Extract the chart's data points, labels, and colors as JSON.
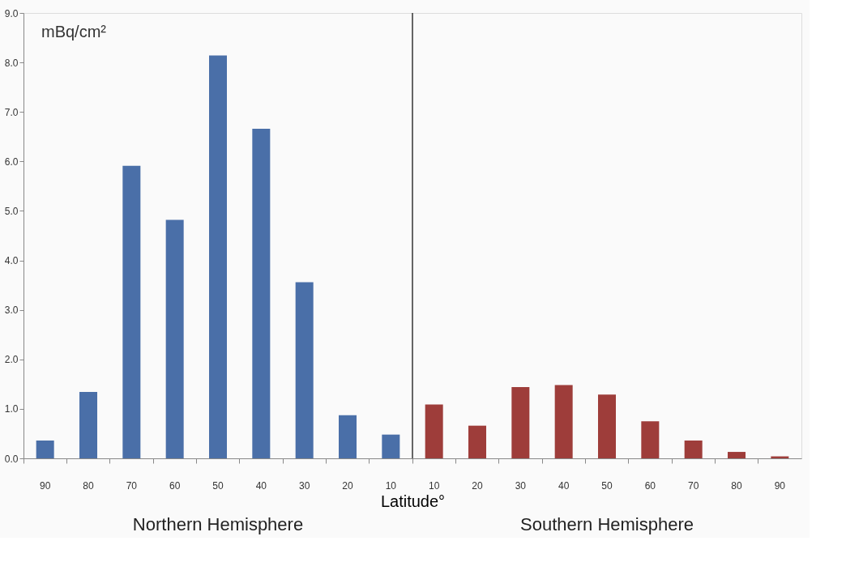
{
  "chart_data": {
    "type": "bar",
    "xlabel": "Latitude°",
    "ylabel": "mBq/cm²",
    "categories": [
      "90",
      "80",
      "70",
      "60",
      "50",
      "40",
      "30",
      "20",
      "10",
      "10",
      "20",
      "30",
      "40",
      "50",
      "60",
      "70",
      "80",
      "90"
    ],
    "values": [
      0.36,
      1.34,
      5.91,
      4.82,
      8.14,
      6.66,
      3.56,
      0.87,
      0.48,
      1.09,
      0.66,
      1.44,
      1.48,
      1.29,
      0.75,
      0.36,
      0.13,
      0.04
    ],
    "colors": [
      "#4a6fa8",
      "#4a6fa8",
      "#4a6fa8",
      "#4a6fa8",
      "#4a6fa8",
      "#4a6fa8",
      "#4a6fa8",
      "#4a6fa8",
      "#4a6fa8",
      "#9e3d3a",
      "#9e3d3a",
      "#9e3d3a",
      "#9e3d3a",
      "#9e3d3a",
      "#9e3d3a",
      "#9e3d3a",
      "#9e3d3a",
      "#9e3d3a"
    ],
    "ylim": [
      0,
      9
    ],
    "yticks": [
      {
        "value": 0,
        "label": "0.0"
      },
      {
        "value": 1,
        "label": "1.0"
      },
      {
        "value": 2,
        "label": "2.0"
      },
      {
        "value": 3,
        "label": "3.0"
      },
      {
        "value": 4,
        "label": "4.0"
      },
      {
        "value": 5,
        "label": "5.0"
      },
      {
        "value": 6,
        "label": "6.0"
      },
      {
        "value": 7,
        "label": "7.0"
      },
      {
        "value": 8,
        "label": "8.0"
      },
      {
        "value": 9,
        "label": "9.0"
      }
    ],
    "annotations": [
      "Northern Hemisphere",
      "Southern Hemisphere"
    ],
    "grid": false
  }
}
